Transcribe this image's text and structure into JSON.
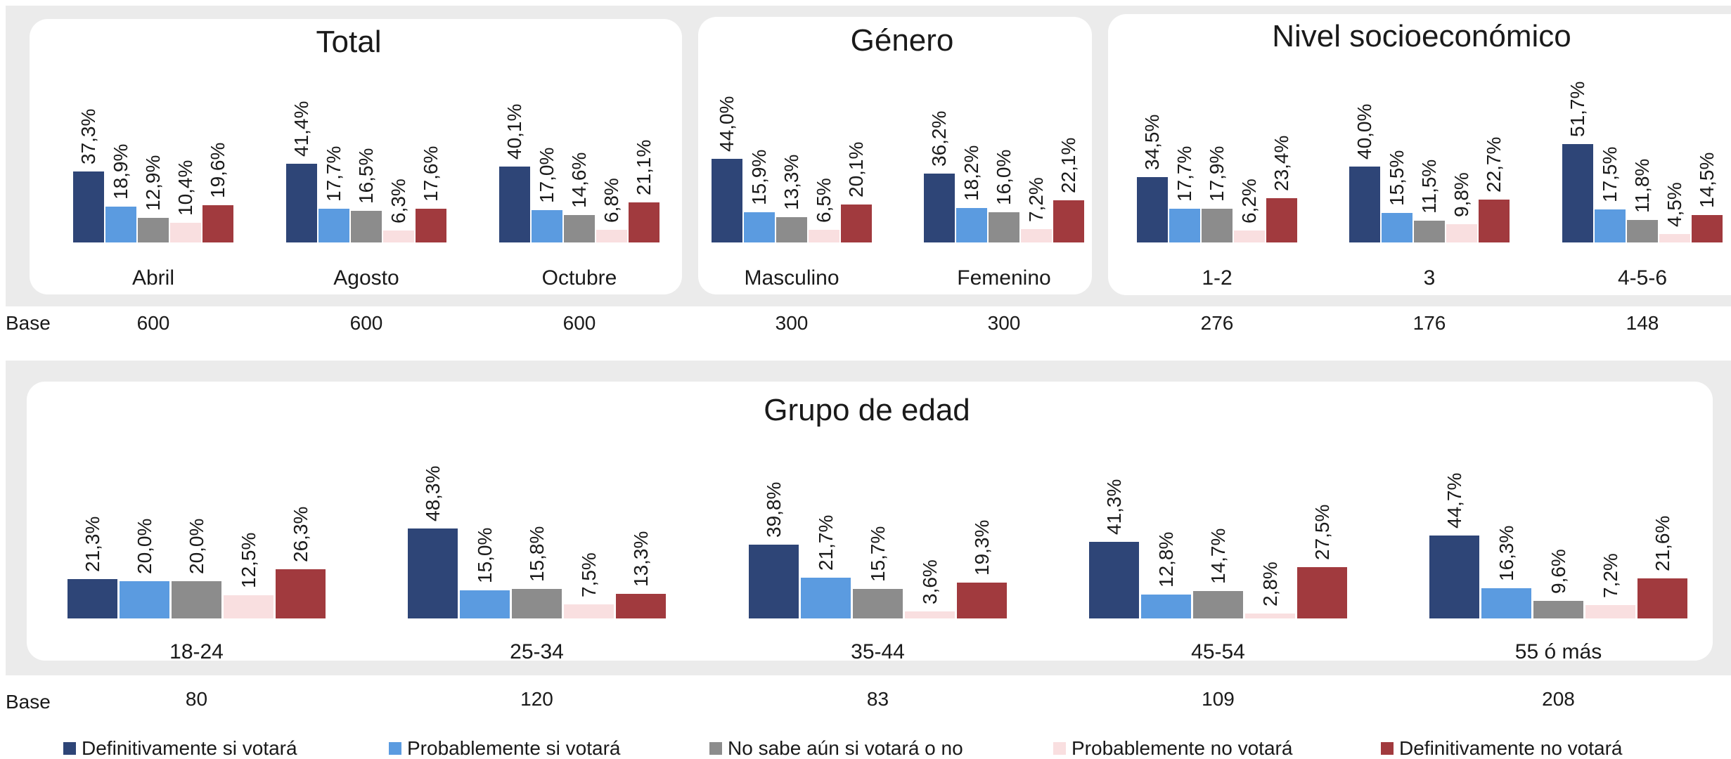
{
  "chart_data": {
    "type": "bar",
    "series": [
      {
        "name": "Definitivamente si votará",
        "color": "#2e4577"
      },
      {
        "name": "Probablemente si votará",
        "color": "#5b9be0"
      },
      {
        "name": "No sabe aún si votará o no",
        "color": "#8c8c8c"
      },
      {
        "name": "Probablemente no votará",
        "color": "#f9dfe0"
      },
      {
        "name": "Definitivamente no votará",
        "color": "#a13a3e"
      }
    ],
    "base_label": "Base",
    "panels": [
      {
        "title": "Total",
        "groups": [
          {
            "label": "Abril",
            "base": "600",
            "values": [
              37.3,
              18.9,
              12.9,
              10.4,
              19.6
            ],
            "labels": [
              "37,3%",
              "18,9%",
              "12,9%",
              "10,4%",
              "19,6%"
            ]
          },
          {
            "label": "Agosto",
            "base": "600",
            "values": [
              41.4,
              17.7,
              16.5,
              6.3,
              17.6
            ],
            "labels": [
              "41,4%",
              "17,7%",
              "16,5%",
              "6,3%",
              "17,6%"
            ]
          },
          {
            "label": "Octubre",
            "base": "600",
            "values": [
              40.1,
              17.0,
              14.6,
              6.8,
              21.1
            ],
            "labels": [
              "40,1%",
              "17,0%",
              "14,6%",
              "6,8%",
              "21,1%"
            ]
          }
        ]
      },
      {
        "title": "Género",
        "groups": [
          {
            "label": "Masculino",
            "base": "300",
            "values": [
              44.0,
              15.9,
              13.3,
              6.5,
              20.1
            ],
            "labels": [
              "44,0%",
              "15,9%",
              "13,3%",
              "6,5%",
              "20,1%"
            ]
          },
          {
            "label": "Femenino",
            "base": "300",
            "values": [
              36.2,
              18.2,
              16.0,
              7.2,
              22.1
            ],
            "labels": [
              "36,2%",
              "18,2%",
              "16,0%",
              "7,2%",
              "22,1%"
            ]
          }
        ]
      },
      {
        "title": "Nivel socioeconómico",
        "groups": [
          {
            "label": "1-2",
            "base": "276",
            "values": [
              34.5,
              17.7,
              17.9,
              6.2,
              23.4
            ],
            "labels": [
              "34,5%",
              "17,7%",
              "17,9%",
              "6,2%",
              "23,4%"
            ]
          },
          {
            "label": "3",
            "base": "176",
            "values": [
              40.0,
              15.5,
              11.5,
              9.8,
              22.7
            ],
            "labels": [
              "40,0%",
              "15,5%",
              "11,5%",
              "9,8%",
              "22,7%"
            ]
          },
          {
            "label": "4-5-6",
            "base": "148",
            "values": [
              51.7,
              17.5,
              11.8,
              4.5,
              14.5
            ],
            "labels": [
              "51,7%",
              "17,5%",
              "11,8%",
              "4,5%",
              "14,5%"
            ]
          }
        ]
      },
      {
        "title": "Grupo de edad",
        "groups": [
          {
            "label": "18-24",
            "base": "80",
            "values": [
              21.3,
              20.0,
              20.0,
              12.5,
              26.3
            ],
            "labels": [
              "21,3%",
              "20,0%",
              "20,0%",
              "12,5%",
              "26,3%"
            ]
          },
          {
            "label": "25-34",
            "base": "120",
            "values": [
              48.3,
              15.0,
              15.8,
              7.5,
              13.3
            ],
            "labels": [
              "48,3%",
              "15,0%",
              "15,8%",
              "7,5%",
              "13,3%"
            ]
          },
          {
            "label": "35-44",
            "base": "83",
            "values": [
              39.8,
              21.7,
              15.7,
              3.6,
              19.3
            ],
            "labels": [
              "39,8%",
              "21,7%",
              "15,7%",
              "3,6%",
              "19,3%"
            ]
          },
          {
            "label": "45-54",
            "base": "109",
            "values": [
              41.3,
              12.8,
              14.7,
              2.8,
              27.5
            ],
            "labels": [
              "41,3%",
              "12,8%",
              "14,7%",
              "2,8%",
              "27,5%"
            ]
          },
          {
            "label": "55 ó más",
            "base": "208",
            "values": [
              44.7,
              16.3,
              9.6,
              7.2,
              21.6
            ],
            "labels": [
              "44,7%",
              "16,3%",
              "9,6%",
              "7,2%",
              "21,6%"
            ]
          }
        ]
      }
    ]
  }
}
